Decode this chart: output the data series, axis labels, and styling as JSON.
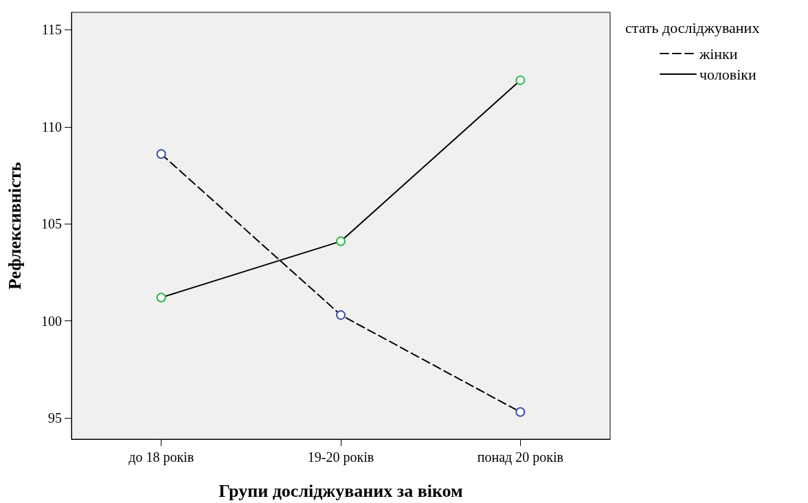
{
  "chart_data": {
    "type": "line",
    "xlabel": "Групи досліджуваних за віком",
    "ylabel": "Рефлексивність",
    "legend_title": "стать досліджуваних",
    "categories": [
      "до 18 років",
      "19-20 років",
      "понад 20 років"
    ],
    "series": [
      {
        "name": "жінки",
        "color": "#000000",
        "colors": [
          "#3f51a8",
          "#3f51a8",
          "#3f51a8"
        ],
        "line_style": "dashed",
        "values": [
          108.6,
          100.3,
          95.3
        ]
      },
      {
        "name": "чоловіки",
        "color": "#000000",
        "colors": [
          "#2db84a",
          "#2db84a",
          "#2db84a"
        ],
        "line_style": "solid",
        "values": [
          101.2,
          104.1,
          112.4
        ]
      }
    ],
    "ylim": [
      93.9,
      115.9
    ],
    "yticks": [
      95,
      100,
      105,
      110,
      115
    ],
    "grid": false,
    "legend": "top right",
    "marker": "circle"
  }
}
